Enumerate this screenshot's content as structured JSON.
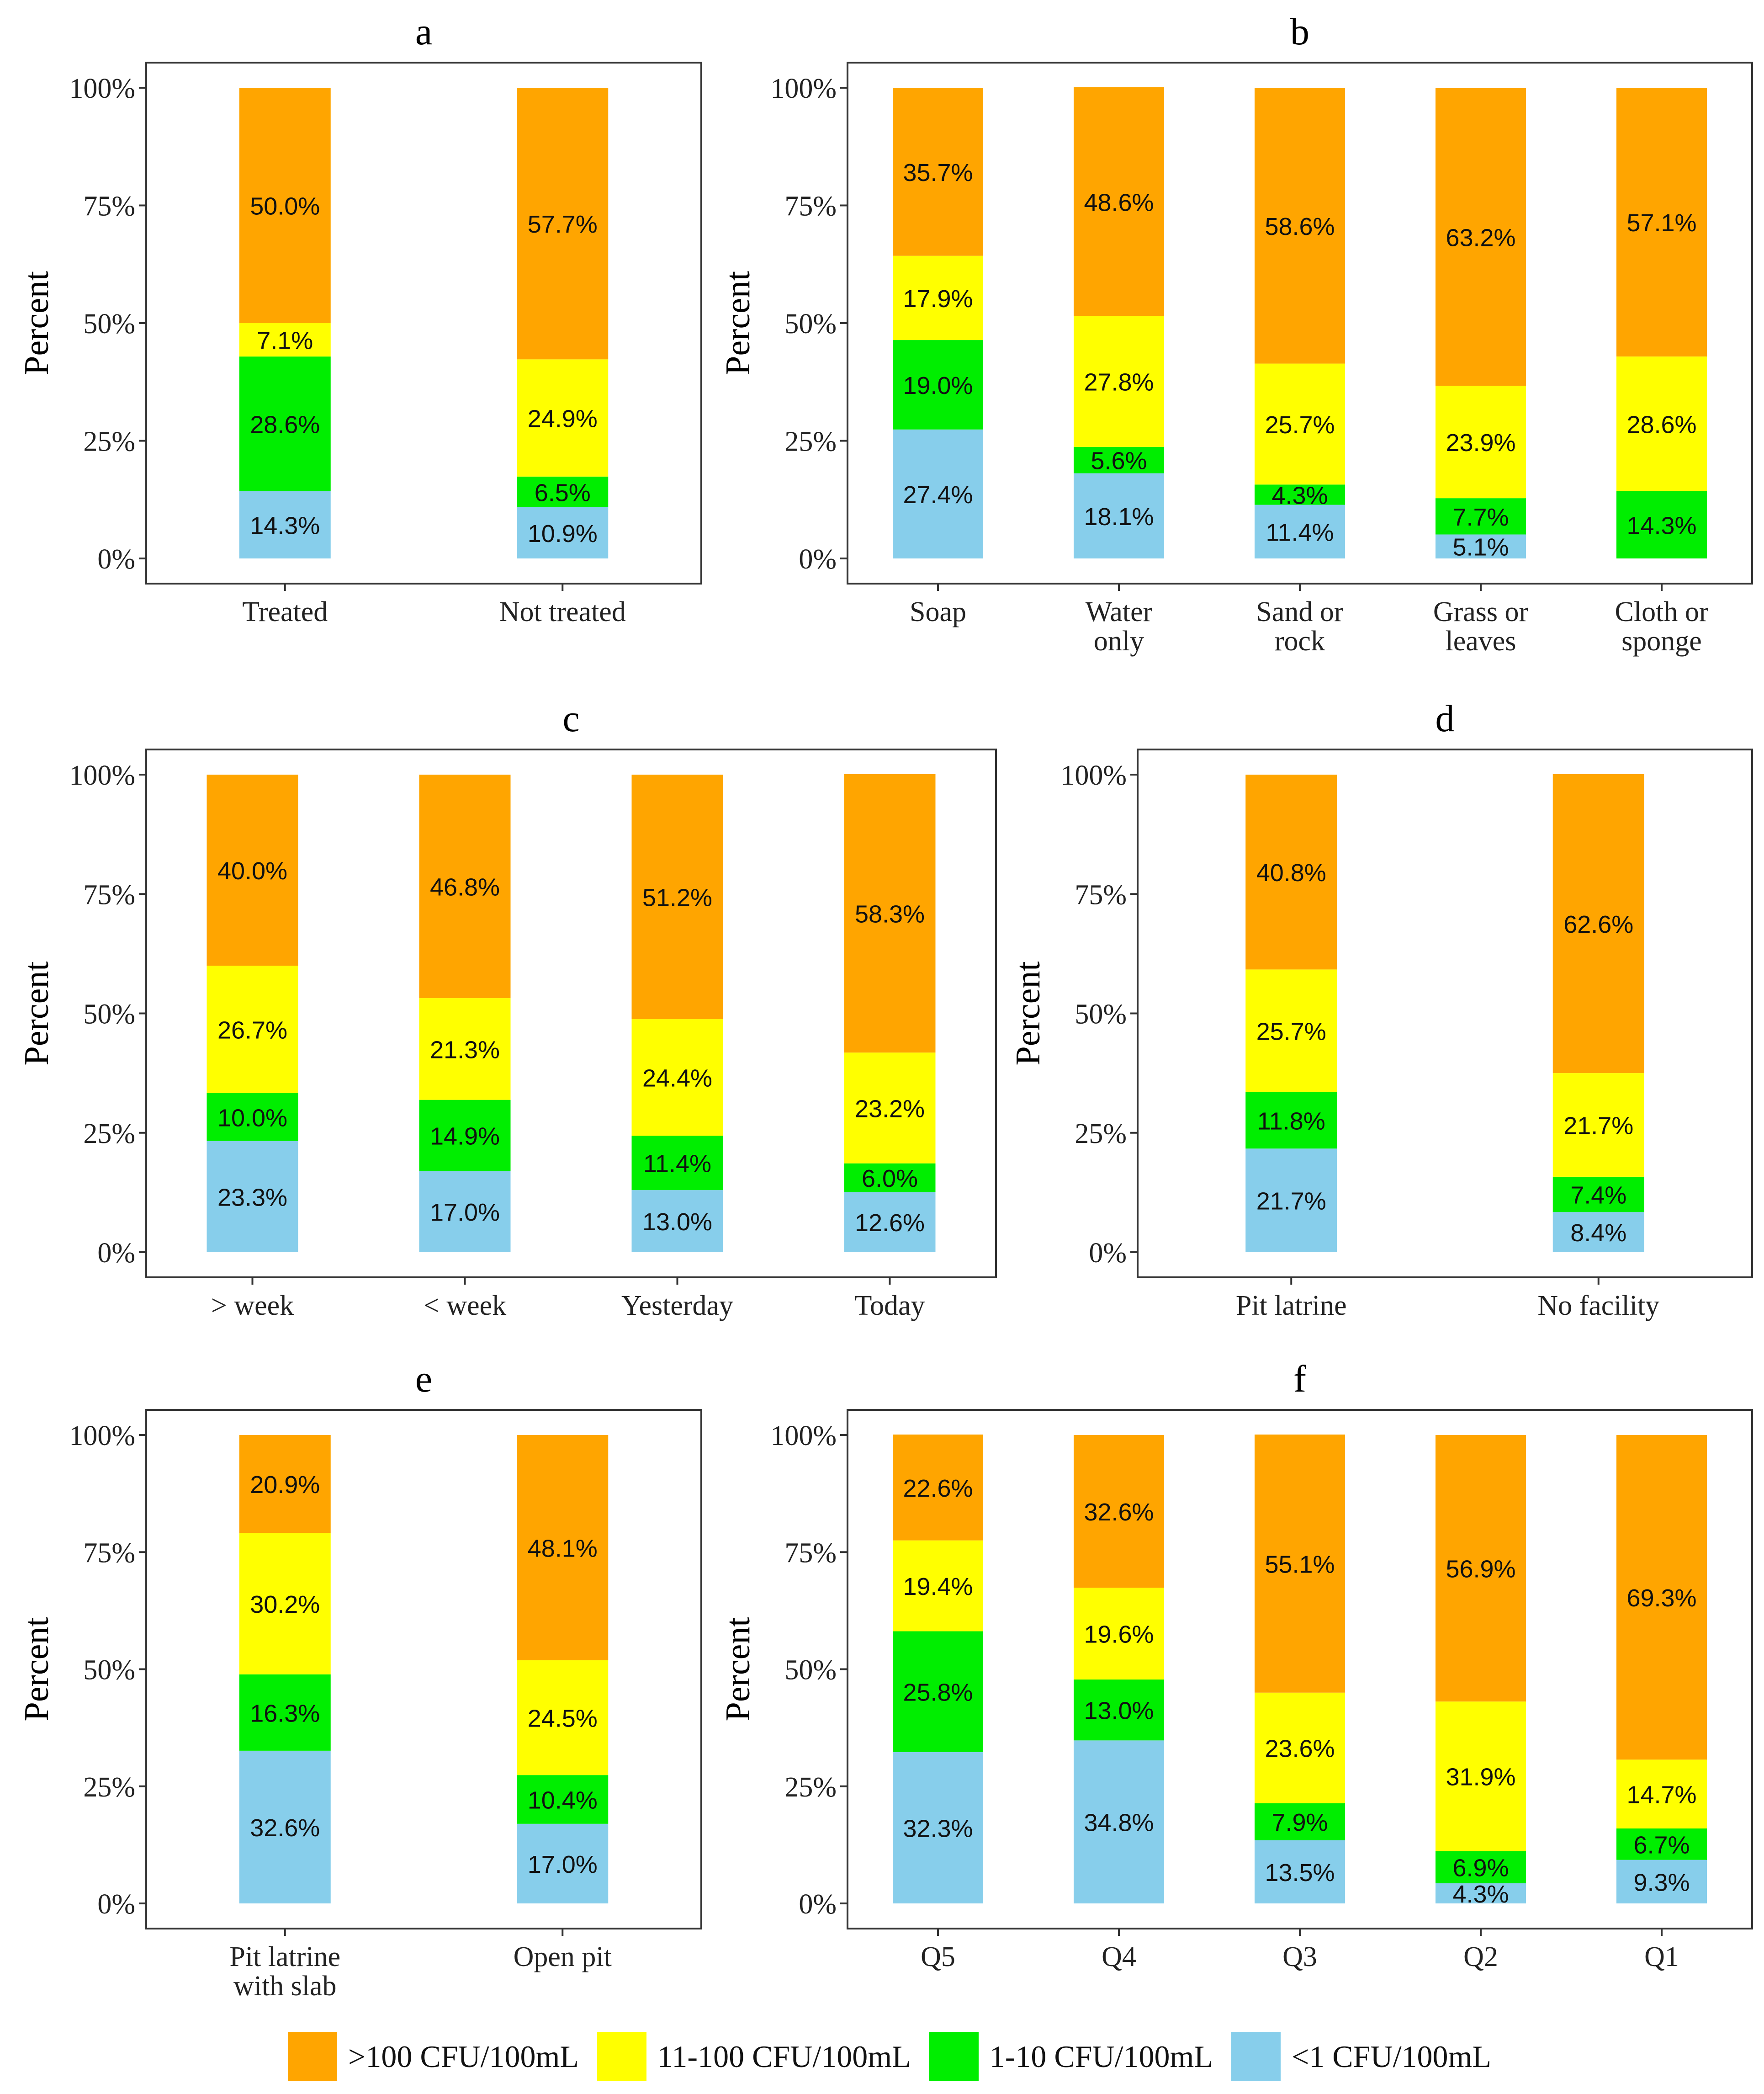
{
  "colors": {
    "gt100": "#FFA500",
    "c11_100": "#FFFF00",
    "c1_10": "#00EE00",
    "lt1": "#87CEEB"
  },
  "legend": [
    {
      "key": "gt100",
      "label": ">100 CFU/100mL"
    },
    {
      "key": "c11_100",
      "label": "11-100 CFU/100mL"
    },
    {
      "key": "c1_10",
      "label": "1-10 CFU/100mL"
    },
    {
      "key": "lt1",
      "label": "<1 CFU/100mL"
    }
  ],
  "chart_data": [
    {
      "type": "bar",
      "stacked": true,
      "title": "a",
      "ylabel": "Percent",
      "yticks": [
        "0%",
        "25%",
        "50%",
        "75%",
        "100%"
      ],
      "ylim": [
        0,
        100
      ],
      "categories": [
        [
          "Treated"
        ],
        [
          "Not treated"
        ]
      ],
      "series": [
        {
          "key": "lt1",
          "values": [
            14.3,
            10.9
          ],
          "labels": [
            "14.3%",
            "10.9%"
          ]
        },
        {
          "key": "c1_10",
          "values": [
            28.6,
            6.5
          ],
          "labels": [
            "28.6%",
            "6.5%"
          ]
        },
        {
          "key": "c11_100",
          "values": [
            7.1,
            24.9
          ],
          "labels": [
            "7.1%",
            "24.9%"
          ]
        },
        {
          "key": "gt100",
          "values": [
            50.0,
            57.7
          ],
          "labels": [
            "50.0%",
            "57.7%"
          ]
        }
      ]
    },
    {
      "type": "bar",
      "stacked": true,
      "title": "b",
      "ylabel": "Percent",
      "yticks": [
        "0%",
        "25%",
        "50%",
        "75%",
        "100%"
      ],
      "ylim": [
        0,
        100
      ],
      "categories": [
        [
          "Soap"
        ],
        [
          "Water",
          "only"
        ],
        [
          "Sand or",
          "rock"
        ],
        [
          "Grass or",
          "leaves"
        ],
        [
          "Cloth or",
          "sponge"
        ]
      ],
      "series": [
        {
          "key": "lt1",
          "values": [
            27.4,
            18.1,
            11.4,
            5.1,
            0
          ],
          "labels": [
            "27.4%",
            "18.1%",
            "11.4%",
            "5.1%",
            ""
          ]
        },
        {
          "key": "c1_10",
          "values": [
            19.0,
            5.6,
            4.3,
            7.7,
            14.3
          ],
          "labels": [
            "19.0%",
            "5.6%",
            "4.3%",
            "7.7%",
            "14.3%"
          ]
        },
        {
          "key": "c11_100",
          "values": [
            17.9,
            27.8,
            25.7,
            23.9,
            28.6
          ],
          "labels": [
            "17.9%",
            "27.8%",
            "25.7%",
            "23.9%",
            "28.6%"
          ]
        },
        {
          "key": "gt100",
          "values": [
            35.7,
            48.6,
            58.6,
            63.2,
            57.1
          ],
          "labels": [
            "35.7%",
            "48.6%",
            "58.6%",
            "63.2%",
            "57.1%"
          ]
        }
      ]
    },
    {
      "type": "bar",
      "stacked": true,
      "title": "c",
      "ylabel": "Percent",
      "yticks": [
        "0%",
        "25%",
        "50%",
        "75%",
        "100%"
      ],
      "ylim": [
        0,
        100
      ],
      "categories": [
        [
          "> week"
        ],
        [
          "< week"
        ],
        [
          "Yesterday"
        ],
        [
          "Today"
        ]
      ],
      "series": [
        {
          "key": "lt1",
          "values": [
            23.3,
            17.0,
            13.0,
            12.6
          ],
          "labels": [
            "23.3%",
            "17.0%",
            "13.0%",
            "12.6%"
          ]
        },
        {
          "key": "c1_10",
          "values": [
            10.0,
            14.9,
            11.4,
            6.0
          ],
          "labels": [
            "10.0%",
            "14.9%",
            "11.4%",
            "6.0%"
          ]
        },
        {
          "key": "c11_100",
          "values": [
            26.7,
            21.3,
            24.4,
            23.2
          ],
          "labels": [
            "26.7%",
            "21.3%",
            "24.4%",
            "23.2%"
          ]
        },
        {
          "key": "gt100",
          "values": [
            40.0,
            46.8,
            51.2,
            58.3
          ],
          "labels": [
            "40.0%",
            "46.8%",
            "51.2%",
            "58.3%"
          ]
        }
      ]
    },
    {
      "type": "bar",
      "stacked": true,
      "title": "d",
      "ylabel": "Percent",
      "yticks": [
        "0%",
        "25%",
        "50%",
        "75%",
        "100%"
      ],
      "ylim": [
        0,
        100
      ],
      "categories": [
        [
          "Pit latrine"
        ],
        [
          "No facility"
        ]
      ],
      "series": [
        {
          "key": "lt1",
          "values": [
            21.7,
            8.4
          ],
          "labels": [
            "21.7%",
            "8.4%"
          ]
        },
        {
          "key": "c1_10",
          "values": [
            11.8,
            7.4
          ],
          "labels": [
            "11.8%",
            "7.4%"
          ]
        },
        {
          "key": "c11_100",
          "values": [
            25.7,
            21.7
          ],
          "labels": [
            "25.7%",
            "21.7%"
          ]
        },
        {
          "key": "gt100",
          "values": [
            40.8,
            62.6
          ],
          "labels": [
            "40.8%",
            "62.6%"
          ]
        }
      ]
    },
    {
      "type": "bar",
      "stacked": true,
      "title": "e",
      "ylabel": "Percent",
      "yticks": [
        "0%",
        "25%",
        "50%",
        "75%",
        "100%"
      ],
      "ylim": [
        0,
        100
      ],
      "categories": [
        [
          "Pit latrine",
          "with slab"
        ],
        [
          "Open pit"
        ]
      ],
      "series": [
        {
          "key": "lt1",
          "values": [
            32.6,
            17.0
          ],
          "labels": [
            "32.6%",
            "17.0%"
          ]
        },
        {
          "key": "c1_10",
          "values": [
            16.3,
            10.4
          ],
          "labels": [
            "16.3%",
            "10.4%"
          ]
        },
        {
          "key": "c11_100",
          "values": [
            30.2,
            24.5
          ],
          "labels": [
            "30.2%",
            "24.5%"
          ]
        },
        {
          "key": "gt100",
          "values": [
            20.9,
            48.1
          ],
          "labels": [
            "20.9%",
            "48.1%"
          ]
        }
      ]
    },
    {
      "type": "bar",
      "stacked": true,
      "title": "f",
      "ylabel": "Percent",
      "yticks": [
        "0%",
        "25%",
        "50%",
        "75%",
        "100%"
      ],
      "ylim": [
        0,
        100
      ],
      "categories": [
        [
          "Q5"
        ],
        [
          "Q4"
        ],
        [
          "Q3"
        ],
        [
          "Q2"
        ],
        [
          "Q1"
        ]
      ],
      "series": [
        {
          "key": "lt1",
          "values": [
            32.3,
            34.8,
            13.5,
            4.3,
            9.3
          ],
          "labels": [
            "32.3%",
            "34.8%",
            "13.5%",
            "4.3%",
            "9.3%"
          ]
        },
        {
          "key": "c1_10",
          "values": [
            25.8,
            13.0,
            7.9,
            6.9,
            6.7
          ],
          "labels": [
            "25.8%",
            "13.0%",
            "7.9%",
            "6.9%",
            "6.7%"
          ]
        },
        {
          "key": "c11_100",
          "values": [
            19.4,
            19.6,
            23.6,
            31.9,
            14.7
          ],
          "labels": [
            "19.4%",
            "19.6%",
            "23.6%",
            "31.9%",
            "14.7%"
          ]
        },
        {
          "key": "gt100",
          "values": [
            22.6,
            32.6,
            55.1,
            56.9,
            69.3
          ],
          "labels": [
            "22.6%",
            "32.6%",
            "55.1%",
            "56.9%",
            "69.3%"
          ]
        }
      ]
    }
  ]
}
